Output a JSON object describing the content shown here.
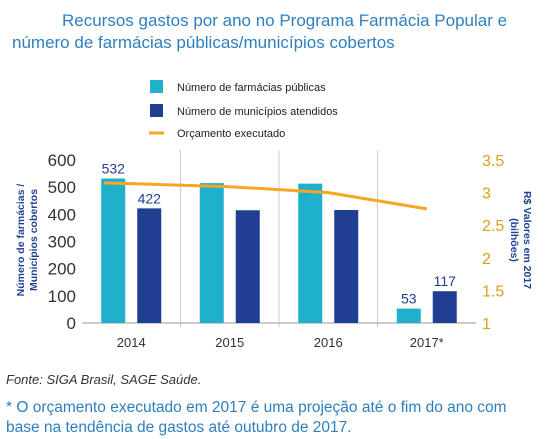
{
  "title": "Recursos gastos por ano no Programa Farmácia Popular e número de farmácias públicas/municípios cobertos",
  "source": "Fonte: SIGA Brasil, SAGE Saúde.",
  "footnote": "* O orçamento executado em 2017 é uma projeção até o fim do ano com base na tendência de gastos até outubro de 2017.",
  "colors": {
    "pharmacies": "#1fb0cc",
    "municipalities": "#1f3f93",
    "budget": "#f5a623",
    "title": "#2e7fbf",
    "axis_left_label": "#1f3f93",
    "axis_right": "#d9a01c"
  },
  "chart_data": {
    "type": "bar",
    "categories": [
      "2014",
      "2015",
      "2016",
      "2017*"
    ],
    "series": [
      {
        "name": "Número de farmácias públicas",
        "values": [
          532,
          515,
          513,
          53
        ],
        "labels": [
          "532",
          "",
          "",
          "53"
        ]
      },
      {
        "name": "Número de municípios atendidos",
        "values": [
          422,
          415,
          416,
          117
        ],
        "labels": [
          "422",
          "",
          "",
          "117"
        ]
      },
      {
        "name": "Orçamento executado",
        "type": "line",
        "axis": "right",
        "values": [
          3.15,
          3.09,
          3.0,
          2.75
        ]
      }
    ],
    "ylabel": "Número de farmácias / Municípios cobertos",
    "y2label": "R$ Valores  em 2017 (bilhões)",
    "ylim": [
      0,
      600
    ],
    "y2lim": [
      1,
      3.5
    ],
    "yticks": [
      "0",
      "100",
      "200",
      "300",
      "400",
      "500",
      "600"
    ],
    "y2ticks": [
      "1",
      "1.5",
      "2",
      "2.5",
      "3",
      "3.5"
    ],
    "grid": "vertical lines between categories",
    "legend": "top-left"
  }
}
